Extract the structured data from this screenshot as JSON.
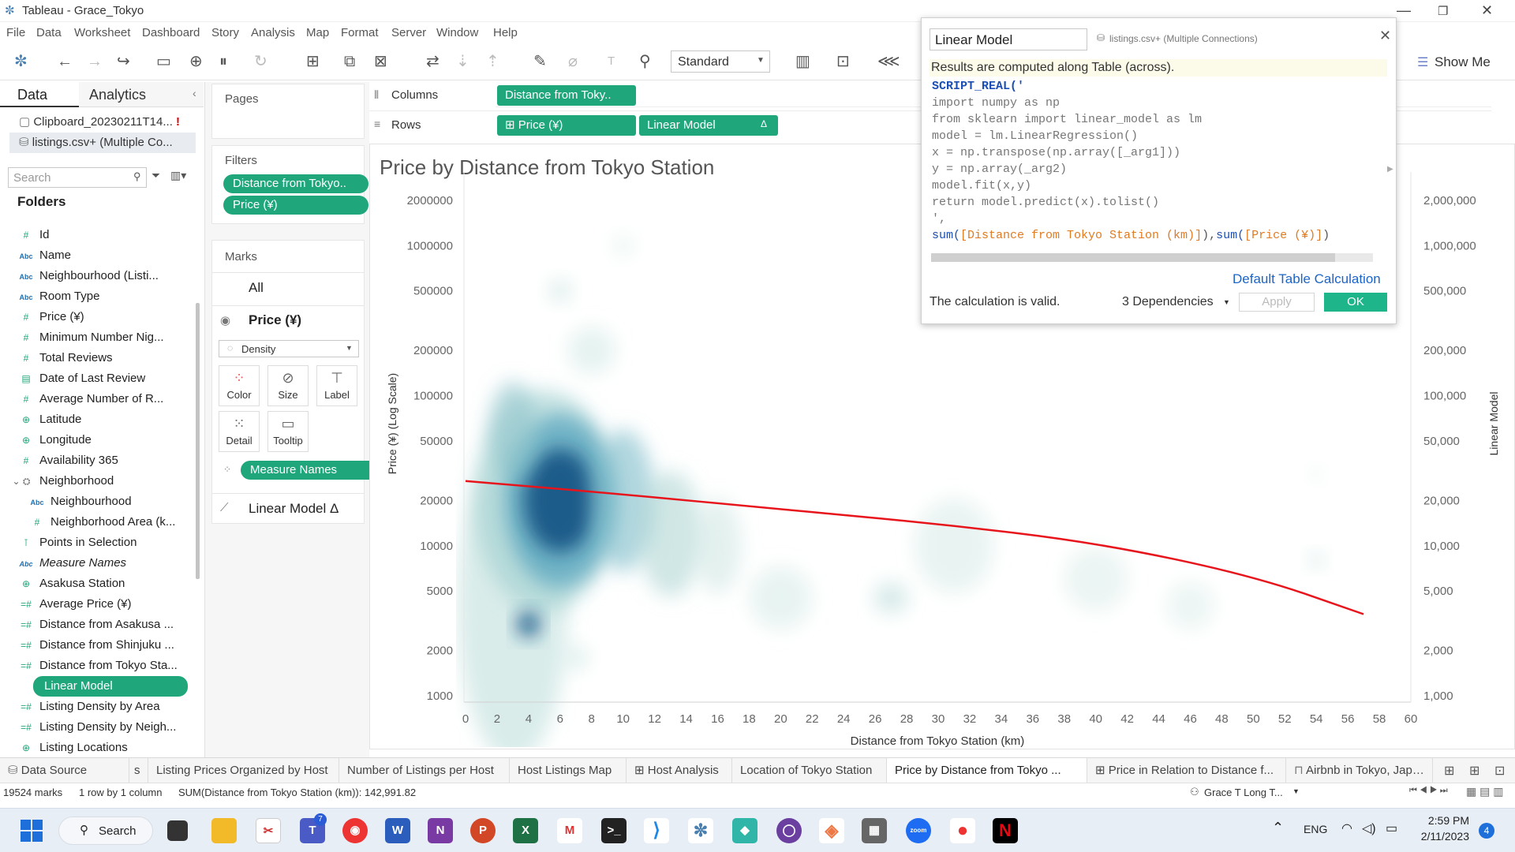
{
  "window": {
    "title": "Tableau - Grace_Tokyo"
  },
  "menu": [
    "File",
    "Data",
    "Worksheet",
    "Dashboard",
    "Story",
    "Analysis",
    "Map",
    "Format",
    "Server",
    "Window",
    "Help"
  ],
  "toolbar": {
    "fit_label": "Standard",
    "show_me": "Show Me"
  },
  "data_pane": {
    "tab_data": "Data",
    "tab_analytics": "Analytics",
    "sources": [
      "Clipboard_20230211T14...",
      "listings.csv+ (Multiple Co..."
    ],
    "search_placeholder": "Search",
    "folders_label": "Folders",
    "fields": [
      {
        "label": "Id",
        "icon": "number"
      },
      {
        "label": "Name",
        "icon": "abc"
      },
      {
        "label": "Neighbourhood (Listi...",
        "icon": "abc"
      },
      {
        "label": "Room Type",
        "icon": "abc"
      },
      {
        "label": "Price (¥)",
        "icon": "number"
      },
      {
        "label": "Minimum Number Nig...",
        "icon": "number"
      },
      {
        "label": "Total Reviews",
        "icon": "number"
      },
      {
        "label": "Date of Last Review",
        "icon": "date"
      },
      {
        "label": "Average Number of R...",
        "icon": "number"
      },
      {
        "label": "Latitude",
        "icon": "globe"
      },
      {
        "label": "Longitude",
        "icon": "globe"
      },
      {
        "label": "Availability 365",
        "icon": "number"
      },
      {
        "label": "Neighborhood",
        "icon": "group"
      },
      {
        "label": "Neighbourhood",
        "icon": "abc"
      },
      {
        "label": "Neighborhood Area (k...",
        "icon": "number"
      },
      {
        "label": "Points in Selection",
        "icon": "set"
      },
      {
        "label": "Measure Names",
        "icon": "abc"
      },
      {
        "label": "Asakusa Station",
        "icon": "globe"
      },
      {
        "label": "Average Price (¥)",
        "icon": "calc"
      },
      {
        "label": "Distance from Asakusa ...",
        "icon": "calc"
      },
      {
        "label": "Distance from Shinjuku ...",
        "icon": "calc"
      },
      {
        "label": "Distance from Tokyo Sta...",
        "icon": "calc"
      },
      {
        "label": "Linear Model",
        "icon": "calc"
      },
      {
        "label": "Listing Density by Area",
        "icon": "calc"
      },
      {
        "label": "Listing Density by Neigh...",
        "icon": "calc"
      },
      {
        "label": "Listing Locations",
        "icon": "globe"
      }
    ]
  },
  "pages_label": "Pages",
  "filters": {
    "label": "Filters",
    "items": [
      "Distance from Tokyo..",
      "Price (¥)"
    ]
  },
  "marks": {
    "label": "Marks",
    "all": "All",
    "price_card": "Price (¥)",
    "mark_type": "Density",
    "buttons": [
      "Color",
      "Size",
      "Label",
      "Detail",
      "Tooltip"
    ],
    "measure_names": "Measure Names",
    "linear_model": "Linear Model Δ"
  },
  "shelves": {
    "columns_label": "Columns",
    "rows_label": "Rows",
    "columns_pill": "Distance from Toky..",
    "rows_pills": [
      "⊞ Price (¥)",
      "Linear Model"
    ],
    "delta": "Δ"
  },
  "chart_title": "Price by Distance from Tokyo Station",
  "chart_data": {
    "type": "scatter",
    "title": "Price by Distance from Tokyo Station",
    "xlabel": "Distance from Tokyo Station (km)",
    "ylabel": "Price (¥) (Log Scale)",
    "ylabel_right": "Linear Model",
    "y_scale": "log",
    "xlim": [
      0,
      60
    ],
    "ylim": [
      1000,
      2000000
    ],
    "x_ticks": [
      0,
      2,
      4,
      6,
      8,
      10,
      12,
      14,
      16,
      18,
      20,
      22,
      24,
      26,
      28,
      30,
      32,
      34,
      36,
      38,
      40,
      42,
      44,
      46,
      48,
      50,
      52,
      54,
      56,
      58,
      60
    ],
    "y_ticks_left": [
      "2000000",
      "1000000",
      "500000",
      "200000",
      "100000",
      "50000",
      "20000",
      "10000",
      "5000",
      "2000",
      "1000"
    ],
    "y_ticks_right": [
      "2,000,000",
      "1,000,000",
      "500,000",
      "200,000",
      "100,000",
      "50,000",
      "20,000",
      "10,000",
      "5,000",
      "2,000",
      "1,000"
    ],
    "y_tick_values": [
      2000000,
      1000000,
      500000,
      200000,
      100000,
      50000,
      20000,
      10000,
      5000,
      2000,
      1000
    ],
    "density_color": "#1a5b8a",
    "line_color": "#e8141c",
    "series": [
      {
        "name": "Linear Model",
        "x": [
          0,
          10,
          20,
          30,
          40,
          50,
          57
        ],
        "y": [
          27000,
          22000,
          17500,
          14000,
          10500,
          6300,
          3500
        ]
      }
    ]
  },
  "calc_dialog": {
    "name": "Linear Model",
    "source": "listings.csv+ (Multiple Connections)",
    "note": "Results are computed along Table (across).",
    "code": [
      {
        "t": "SCRIPT_REAL('",
        "k": "fn"
      },
      {
        "t": "import numpy as np",
        "k": "s"
      },
      {
        "t": "from sklearn import linear_model as lm",
        "k": "s"
      },
      {
        "t": "model = lm.LinearRegression()",
        "k": "s"
      },
      {
        "t": "x = np.transpose(np.array([_arg1]))",
        "k": "s"
      },
      {
        "t": "y = np.array(_arg2)",
        "k": "s"
      },
      {
        "t": "model.fit(x,y)",
        "k": "s"
      },
      {
        "t": "return model.predict(x).tolist()",
        "k": "s"
      },
      {
        "t": "',",
        "k": "s"
      }
    ],
    "code_last": {
      "sum1": "sum(",
      "f1": "[Distance from Tokyo Station (km)]",
      "m": "),",
      "sum2": "sum(",
      "f2": "[Price (¥)]",
      "e": ")"
    },
    "default_calc": "Default Table Calculation",
    "valid": "The calculation is valid.",
    "deps": "3 Dependencies",
    "apply": "Apply",
    "ok": "OK"
  },
  "tabs": [
    "Data Source",
    "s",
    "Listing Prices Organized by Host",
    "Number of Listings per Host",
    "Host Listings Map",
    "⊞ Host Analysis",
    "Location of Tokyo Station",
    "Price by Distance from Tokyo ...",
    "⊞ Price in Relation to Distance f...",
    "Airbnb in Tokyo, Japan"
  ],
  "status": {
    "marks": "19524 marks",
    "rows": "1 row by 1 column",
    "sum": "SUM(Distance from Tokyo Station (km)): 142,991.82",
    "user": "Grace T Long T..."
  },
  "taskbar": {
    "search": "Search",
    "lang": "ENG",
    "time": "2:59 PM",
    "date": "2/11/2023",
    "badge": "4",
    "teams_badge": "7"
  }
}
